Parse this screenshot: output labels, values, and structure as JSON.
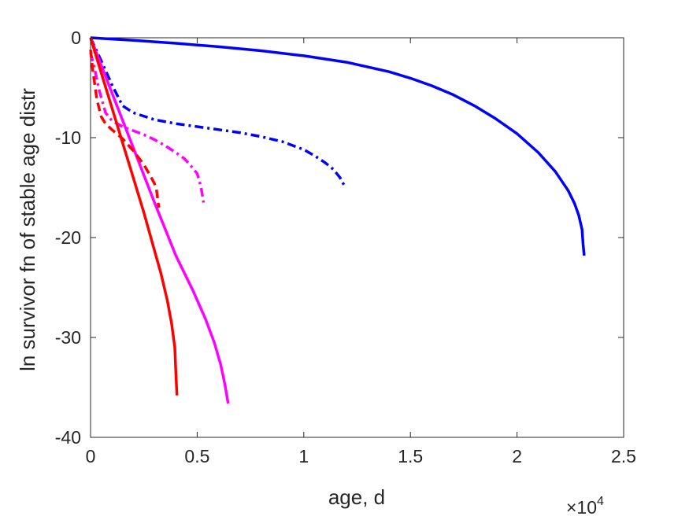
{
  "chart_data": {
    "type": "line",
    "xlabel": "age, d",
    "ylabel": "ln survivor fn of stable age distr",
    "x_exponent_label": "×10",
    "x_exponent_power": "4",
    "xlim": [
      0,
      25000
    ],
    "ylim": [
      -40,
      0
    ],
    "xticks": [
      0,
      5000,
      10000,
      15000,
      20000,
      25000
    ],
    "xtick_labels": [
      "0",
      "0.5",
      "1",
      "1.5",
      "2",
      "2.5"
    ],
    "yticks": [
      0,
      -10,
      -20,
      -30,
      -40
    ],
    "ytick_labels": [
      "0",
      "-10",
      "-20",
      "-30",
      "-40"
    ],
    "grid": false,
    "legend": "none",
    "series": [
      {
        "color": "#0000ff",
        "dash": "solid",
        "x": [
          0,
          2000,
          4000,
          6000,
          8000,
          10000,
          12000,
          14000,
          15000,
          16000,
          17000,
          18000,
          19000,
          20000,
          21000,
          21800,
          22400,
          22700,
          22900,
          23050,
          23100,
          23150
        ],
        "y": [
          0,
          -0.25,
          -0.55,
          -0.9,
          -1.3,
          -1.8,
          -2.45,
          -3.4,
          -4.05,
          -4.8,
          -5.7,
          -6.8,
          -8.1,
          -9.6,
          -11.5,
          -13.4,
          -15.3,
          -16.6,
          -17.8,
          -19.2,
          -20.7,
          -21.8
        ]
      },
      {
        "color": "#0000ff",
        "dash": "dashdot",
        "x": [
          0,
          500,
          1000,
          1500,
          2000,
          3000,
          4000,
          5000,
          6000,
          7000,
          8000,
          9000,
          10000,
          10500,
          11000,
          11400,
          11700,
          11900
        ],
        "y": [
          0,
          -2.3,
          -4.7,
          -6.8,
          -7.5,
          -8.2,
          -8.6,
          -8.9,
          -9.2,
          -9.5,
          -9.9,
          -10.4,
          -11.2,
          -11.8,
          -12.5,
          -13.2,
          -14.0,
          -14.8
        ]
      },
      {
        "color": "#ff00ff",
        "dash": "solid",
        "x": [
          0,
          1000,
          2000,
          3000,
          4000,
          4800,
          5400,
          5800,
          6100,
          6300,
          6450
        ],
        "y": [
          0,
          -5.5,
          -11,
          -16.5,
          -21.8,
          -25.3,
          -28.2,
          -30.5,
          -32.7,
          -34.7,
          -36.6
        ]
      },
      {
        "color": "#ff00ff",
        "dash": "dashdot",
        "x": [
          0,
          200,
          400,
          700,
          1000,
          1500,
          2000,
          2500,
          3000,
          3500,
          4000,
          4400,
          4700,
          5000,
          5100,
          5200,
          5300
        ],
        "y": [
          -1.5,
          -3.2,
          -5.2,
          -7.5,
          -8.3,
          -8.9,
          -9.3,
          -9.7,
          -10.2,
          -10.8,
          -11.5,
          -12.1,
          -12.8,
          -13.6,
          -14.3,
          -15.2,
          -16.5
        ]
      },
      {
        "color": "#ff0000",
        "dash": "solid",
        "x": [
          0,
          500,
          1000,
          1500,
          2000,
          2500,
          3000,
          3300,
          3600,
          3800,
          3950,
          4000,
          4050
        ],
        "y": [
          0,
          -3.5,
          -7,
          -10.5,
          -14,
          -17.5,
          -21.3,
          -23.6,
          -26.3,
          -28.6,
          -31,
          -33.5,
          -35.8
        ]
      },
      {
        "color": "#ff0000",
        "dash": "dashed",
        "x": [
          0,
          100,
          300,
          500,
          700,
          1000,
          1500,
          2000,
          2500,
          2800,
          3000,
          3100,
          3150,
          3200
        ],
        "y": [
          -1.2,
          -3.2,
          -6.2,
          -7.9,
          -8.6,
          -9.2,
          -10.1,
          -11.3,
          -12.7,
          -13.8,
          -14.6,
          -15.3,
          -16.2,
          -17.0
        ]
      }
    ]
  }
}
